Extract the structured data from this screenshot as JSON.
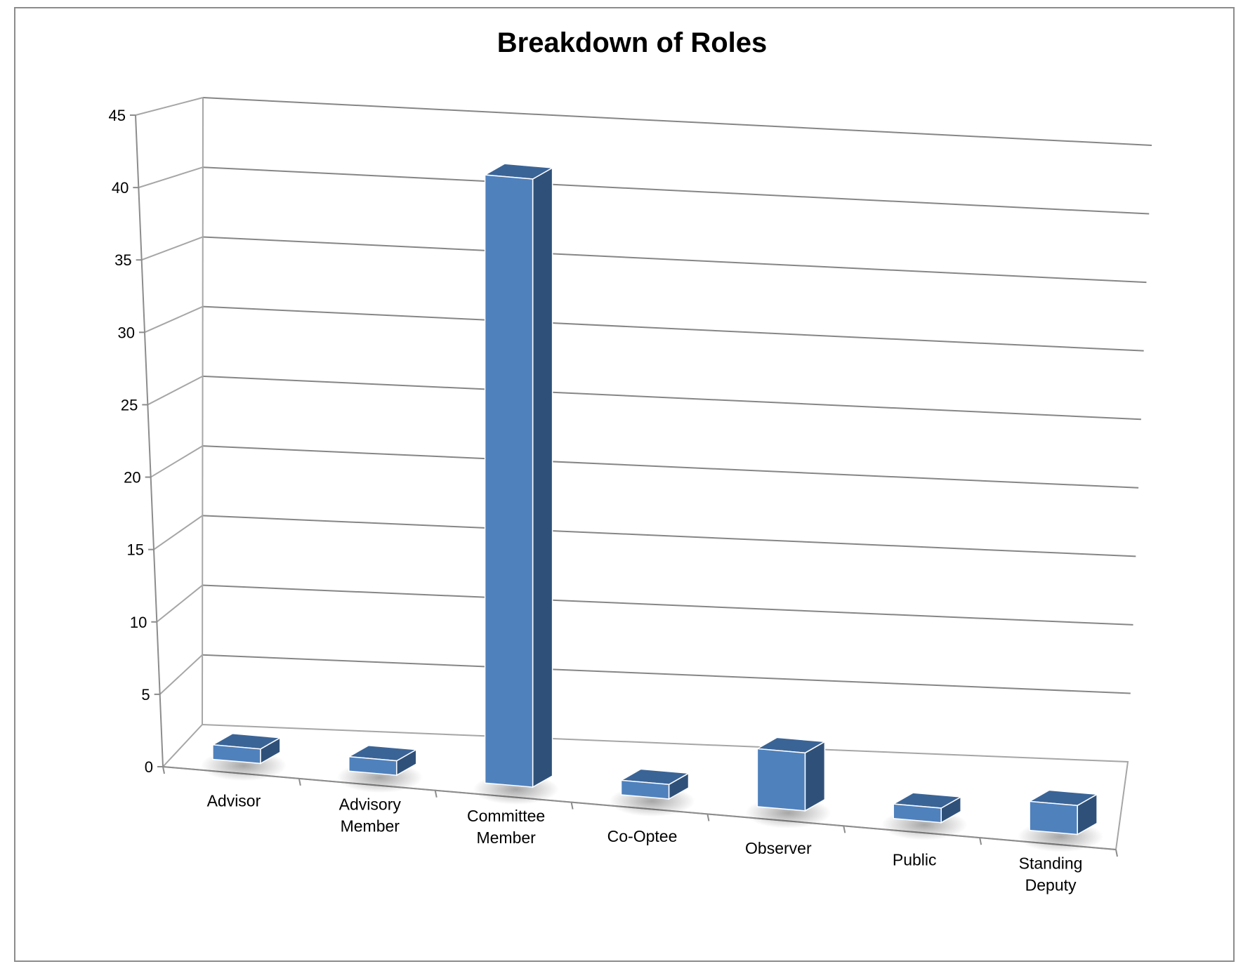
{
  "chart_data": {
    "type": "bar",
    "style": "3d-column",
    "title": "Breakdown of Roles",
    "categories": [
      "Advisor",
      "Advisory Member",
      "Committee Member",
      "Co-Optee",
      "Observer",
      "Public",
      "Standing Deputy"
    ],
    "category_label_lines": [
      [
        "Advisor"
      ],
      [
        "Advisory",
        "Member"
      ],
      [
        "Committee",
        "Member"
      ],
      [
        "Co-Optee"
      ],
      [
        "Observer"
      ],
      [
        "Public"
      ],
      [
        "Standing",
        "Deputy"
      ]
    ],
    "values": [
      1,
      1,
      42,
      1,
      4,
      1,
      2
    ],
    "ylim": [
      0,
      45
    ],
    "yticks": [
      0,
      5,
      10,
      15,
      20,
      25,
      30,
      35,
      40,
      45
    ],
    "grid": true,
    "legend": "none",
    "colors": {
      "front": "#4f81bd",
      "side": "#2f5179",
      "top": "#3b6496",
      "grid": "#868686"
    }
  }
}
